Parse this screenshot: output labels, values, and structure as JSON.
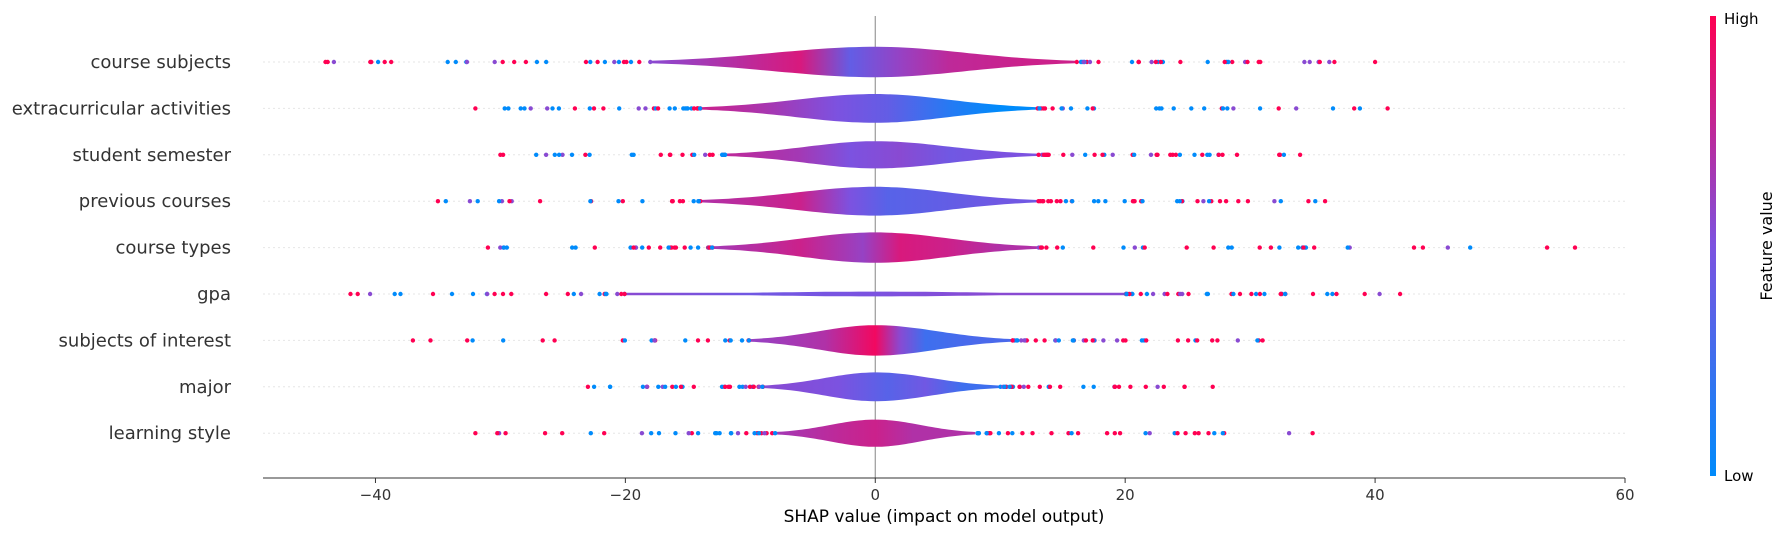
{
  "chart_data": {
    "type": "violin",
    "xlabel": "SHAP value (impact on model output)",
    "xlim": [
      -49,
      60
    ],
    "xticks": [
      -40,
      -20,
      0,
      20,
      40,
      60
    ],
    "xtick_labels": [
      "−40",
      "−20",
      "0",
      "20",
      "40",
      "60"
    ],
    "colorbar": {
      "label": "Feature value",
      "high_label": "High",
      "low_label": "Low",
      "high_color": "#ff0052",
      "low_color": "#008bfb"
    },
    "features": [
      {
        "name": "course subjects",
        "min": -44,
        "max": 40,
        "width": 0.95,
        "core": [
          -18,
          16
        ],
        "segments": [
          [
            -18,
            0.55
          ],
          [
            -10,
            0.75
          ],
          [
            -6,
            0.85
          ],
          [
            -2,
            0.4
          ],
          [
            2,
            0.6
          ],
          [
            6,
            0.75
          ],
          [
            12,
            0.8
          ]
        ]
      },
      {
        "name": "extracurricular activities",
        "min": -32,
        "max": 41,
        "width": 0.9,
        "core": [
          -14,
          13
        ],
        "segments": [
          [
            -14,
            0.8
          ],
          [
            -8,
            0.65
          ],
          [
            -3,
            0.5
          ],
          [
            1,
            0.4
          ],
          [
            6,
            0.15
          ],
          [
            10,
            0.0
          ]
        ]
      },
      {
        "name": "student semester",
        "min": -30,
        "max": 34,
        "width": 0.85,
        "core": [
          -12,
          13
        ],
        "segments": [
          [
            -12,
            0.75
          ],
          [
            -6,
            0.65
          ],
          [
            -2,
            0.5
          ],
          [
            2,
            0.55
          ],
          [
            6,
            0.45
          ],
          [
            10,
            0.5
          ]
        ]
      },
      {
        "name": "previous courses",
        "min": -35,
        "max": 36,
        "width": 0.9,
        "core": [
          -14,
          13
        ],
        "segments": [
          [
            -14,
            0.7
          ],
          [
            -6,
            0.8
          ],
          [
            -2,
            0.5
          ],
          [
            1,
            0.35
          ],
          [
            6,
            0.4
          ],
          [
            10,
            0.45
          ]
        ]
      },
      {
        "name": "course types",
        "min": -31,
        "max": 56,
        "width": 0.95,
        "core": [
          -13,
          13
        ],
        "segments": [
          [
            -13,
            0.65
          ],
          [
            -6,
            0.8
          ],
          [
            -1,
            0.6
          ],
          [
            2,
            0.85
          ],
          [
            6,
            0.8
          ],
          [
            10,
            0.7
          ]
        ]
      },
      {
        "name": "gpa",
        "min": -42,
        "max": 42,
        "width": 0.15,
        "core": [
          -20,
          20
        ],
        "segments": [
          [
            -20,
            0.55
          ],
          [
            -10,
            0.45
          ],
          [
            0,
            0.5
          ],
          [
            10,
            0.55
          ]
        ]
      },
      {
        "name": "subjects of interest",
        "min": -37,
        "max": 31,
        "width": 0.95,
        "core": [
          -10,
          11
        ],
        "segments": [
          [
            -10,
            0.6
          ],
          [
            -4,
            0.7
          ],
          [
            0,
            0.95
          ],
          [
            2,
            0.55
          ],
          [
            4,
            0.25
          ],
          [
            8,
            0.3
          ]
        ]
      },
      {
        "name": "major",
        "min": -23,
        "max": 27,
        "width": 0.9,
        "core": [
          -9,
          10
        ],
        "segments": [
          [
            -9,
            0.55
          ],
          [
            -3,
            0.5
          ],
          [
            1,
            0.35
          ],
          [
            4,
            0.45
          ],
          [
            7,
            0.25
          ]
        ]
      },
      {
        "name": "learning style",
        "min": -32,
        "max": 35,
        "width": 0.85,
        "core": [
          -8,
          8
        ],
        "segments": [
          [
            -8,
            0.65
          ],
          [
            -3,
            0.75
          ],
          [
            0,
            0.8
          ],
          [
            3,
            0.7
          ]
        ]
      }
    ]
  }
}
